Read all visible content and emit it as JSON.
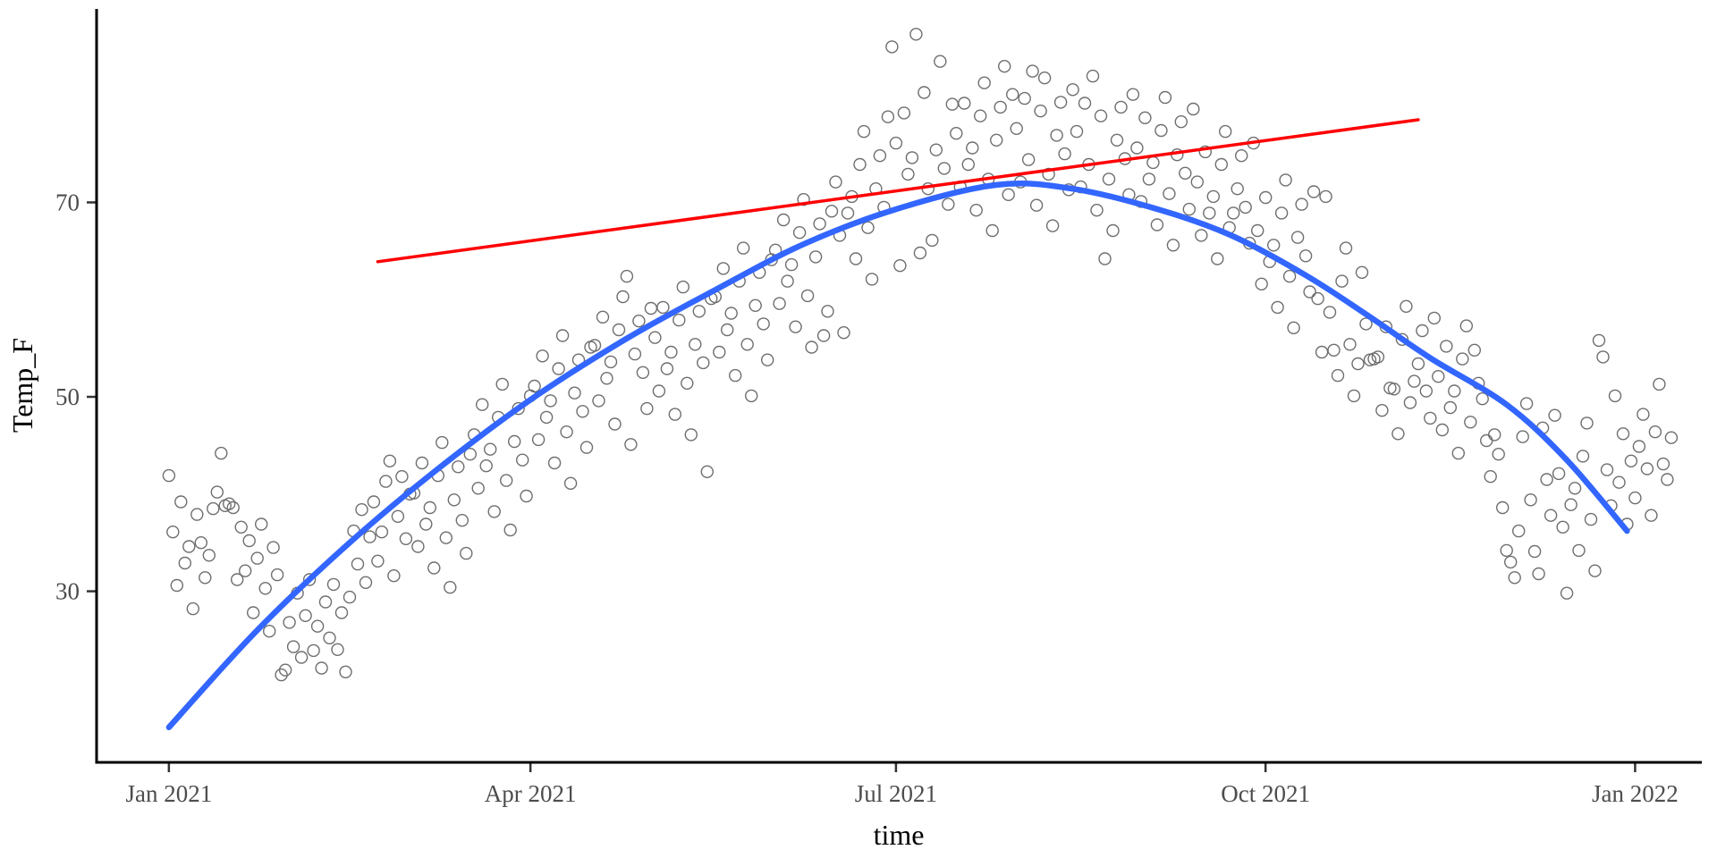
{
  "chart_data": {
    "type": "scatter",
    "title": "",
    "xlabel": "time",
    "ylabel": "Temp_F",
    "grid": false,
    "legend": "none",
    "plot_background": "#ffffff",
    "colors": {
      "points": "#6e6e6e",
      "smooth_line": "#3366FF",
      "trend_line": "#FF0000",
      "axis_line": "#000000",
      "tick_text": "#4d4d4d",
      "title_text": "#000000"
    },
    "x_axis": {
      "label": "time",
      "unit": "days since 2021-01-01",
      "range": [
        -18,
        381.6
      ],
      "ticks": [
        {
          "day": 0,
          "label": "Jan 2021"
        },
        {
          "day": 90,
          "label": "Apr 2021"
        },
        {
          "day": 181,
          "label": "Jul 2021"
        },
        {
          "day": 273,
          "label": "Oct 2021"
        },
        {
          "day": 365,
          "label": "Jan 2022"
        }
      ]
    },
    "y_axis": {
      "label": "Temp_F",
      "range": [
        12.4,
        89.9
      ],
      "ticks": [
        30,
        50,
        70
      ]
    },
    "smooth_line": {
      "name": "quadratic-smooth-fit",
      "color": "#3366FF",
      "points": [
        [
          0,
          16
        ],
        [
          22,
          26
        ],
        [
          45,
          35
        ],
        [
          67,
          42.6
        ],
        [
          90,
          49.7
        ],
        [
          114,
          56
        ],
        [
          136,
          61
        ],
        [
          158,
          65.7
        ],
        [
          181,
          69.3
        ],
        [
          206,
          71.8
        ],
        [
          225,
          71.4
        ],
        [
          247,
          69.2
        ],
        [
          265,
          66.5
        ],
        [
          283,
          62.5
        ],
        [
          298,
          58.5
        ],
        [
          314,
          54
        ],
        [
          333,
          49.2
        ],
        [
          348,
          43.5
        ],
        [
          363,
          36.2
        ]
      ]
    },
    "trend_line": {
      "name": "linear-trend-fit",
      "color": "#FF0000",
      "start": [
        52,
        63.9
      ],
      "end": [
        311,
        78.5
      ]
    },
    "points": [
      [
        0,
        41.9
      ],
      [
        1,
        36.1
      ],
      [
        2,
        30.6
      ],
      [
        3,
        39.2
      ],
      [
        4,
        32.9
      ],
      [
        5,
        34.6
      ],
      [
        6,
        28.2
      ],
      [
        7,
        37.9
      ],
      [
        8,
        35.0
      ],
      [
        9,
        31.4
      ],
      [
        10,
        33.7
      ],
      [
        11,
        38.5
      ],
      [
        12,
        40.2
      ],
      [
        13,
        44.2
      ],
      [
        14,
        38.8
      ],
      [
        15,
        39.0
      ],
      [
        16,
        38.6
      ],
      [
        17,
        31.2
      ],
      [
        18,
        36.6
      ],
      [
        19,
        32.1
      ],
      [
        20,
        35.2
      ],
      [
        21,
        27.8
      ],
      [
        22,
        33.4
      ],
      [
        23,
        36.9
      ],
      [
        24,
        30.3
      ],
      [
        25,
        25.9
      ],
      [
        26,
        34.5
      ],
      [
        27,
        31.7
      ],
      [
        28,
        21.4
      ],
      [
        29,
        21.9
      ],
      [
        30,
        26.8
      ],
      [
        31,
        24.3
      ],
      [
        32,
        29.8
      ],
      [
        33,
        23.2
      ],
      [
        34,
        27.5
      ],
      [
        35,
        31.2
      ],
      [
        36,
        23.9
      ],
      [
        37,
        26.4
      ],
      [
        38,
        22.1
      ],
      [
        39,
        28.9
      ],
      [
        40,
        25.2
      ],
      [
        41,
        30.7
      ],
      [
        42,
        24.0
      ],
      [
        43,
        27.8
      ],
      [
        44,
        21.7
      ],
      [
        45,
        29.4
      ],
      [
        46,
        36.2
      ],
      [
        47,
        32.8
      ],
      [
        48,
        38.4
      ],
      [
        49,
        30.9
      ],
      [
        50,
        35.6
      ],
      [
        51,
        39.2
      ],
      [
        52,
        33.1
      ],
      [
        53,
        36.1
      ],
      [
        54,
        41.3
      ],
      [
        55,
        43.4
      ],
      [
        56,
        31.6
      ],
      [
        57,
        37.7
      ],
      [
        58,
        41.8
      ],
      [
        59,
        35.4
      ],
      [
        60,
        40.0
      ],
      [
        61,
        40.1
      ],
      [
        62,
        34.6
      ],
      [
        63,
        43.2
      ],
      [
        64,
        36.9
      ],
      [
        65,
        38.6
      ],
      [
        66,
        32.4
      ],
      [
        67,
        41.9
      ],
      [
        68,
        45.3
      ],
      [
        69,
        35.5
      ],
      [
        70,
        30.4
      ],
      [
        71,
        39.4
      ],
      [
        72,
        42.8
      ],
      [
        73,
        37.3
      ],
      [
        74,
        33.9
      ],
      [
        75,
        44.1
      ],
      [
        76,
        46.1
      ],
      [
        77,
        40.6
      ],
      [
        78,
        49.2
      ],
      [
        79,
        42.9
      ],
      [
        80,
        44.6
      ],
      [
        81,
        38.2
      ],
      [
        82,
        47.9
      ],
      [
        83,
        51.3
      ],
      [
        84,
        41.4
      ],
      [
        85,
        36.3
      ],
      [
        86,
        45.4
      ],
      [
        87,
        48.8
      ],
      [
        88,
        43.5
      ],
      [
        89,
        39.8
      ],
      [
        90,
        50.1
      ],
      [
        91,
        51.1
      ],
      [
        92,
        45.6
      ],
      [
        93,
        54.2
      ],
      [
        94,
        47.9
      ],
      [
        95,
        49.6
      ],
      [
        96,
        43.2
      ],
      [
        97,
        52.9
      ],
      [
        98,
        56.3
      ],
      [
        99,
        46.4
      ],
      [
        100,
        41.1
      ],
      [
        101,
        50.4
      ],
      [
        102,
        53.8
      ],
      [
        103,
        48.5
      ],
      [
        104,
        44.8
      ],
      [
        105,
        55.1
      ],
      [
        106,
        55.3
      ],
      [
        107,
        49.6
      ],
      [
        108,
        58.2
      ],
      [
        109,
        51.9
      ],
      [
        110,
        53.6
      ],
      [
        111,
        47.2
      ],
      [
        112,
        56.9
      ],
      [
        113,
        60.3
      ],
      [
        114,
        62.4
      ],
      [
        115,
        45.1
      ],
      [
        116,
        54.4
      ],
      [
        117,
        57.8
      ],
      [
        118,
        52.5
      ],
      [
        119,
        48.8
      ],
      [
        120,
        59.1
      ],
      [
        121,
        56.1
      ],
      [
        122,
        50.6
      ],
      [
        123,
        59.2
      ],
      [
        124,
        52.9
      ],
      [
        125,
        54.6
      ],
      [
        126,
        48.2
      ],
      [
        127,
        57.9
      ],
      [
        128,
        61.3
      ],
      [
        129,
        51.4
      ],
      [
        130,
        46.1
      ],
      [
        131,
        55.4
      ],
      [
        132,
        58.8
      ],
      [
        133,
        53.5
      ],
      [
        134,
        42.3
      ],
      [
        135,
        60.1
      ],
      [
        136,
        60.3
      ],
      [
        137,
        54.6
      ],
      [
        138,
        63.2
      ],
      [
        139,
        56.9
      ],
      [
        140,
        58.6
      ],
      [
        141,
        52.2
      ],
      [
        142,
        61.9
      ],
      [
        143,
        65.3
      ],
      [
        144,
        55.4
      ],
      [
        145,
        50.1
      ],
      [
        146,
        59.4
      ],
      [
        147,
        62.8
      ],
      [
        148,
        57.5
      ],
      [
        149,
        53.8
      ],
      [
        150,
        64.1
      ],
      [
        151,
        65.1
      ],
      [
        152,
        59.6
      ],
      [
        153,
        68.2
      ],
      [
        154,
        61.9
      ],
      [
        155,
        63.6
      ],
      [
        156,
        57.2
      ],
      [
        157,
        66.9
      ],
      [
        158,
        70.3
      ],
      [
        159,
        60.4
      ],
      [
        160,
        55.1
      ],
      [
        161,
        64.4
      ],
      [
        162,
        67.8
      ],
      [
        163,
        56.3
      ],
      [
        164,
        58.8
      ],
      [
        165,
        69.1
      ],
      [
        166,
        72.1
      ],
      [
        167,
        66.6
      ],
      [
        168,
        56.6
      ],
      [
        169,
        68.9
      ],
      [
        170,
        70.6
      ],
      [
        171,
        64.2
      ],
      [
        172,
        73.9
      ],
      [
        173,
        77.3
      ],
      [
        174,
        67.4
      ],
      [
        175,
        62.1
      ],
      [
        176,
        71.4
      ],
      [
        177,
        74.8
      ],
      [
        178,
        69.5
      ],
      [
        179,
        78.8
      ],
      [
        180,
        86.0
      ],
      [
        181,
        76.1
      ],
      [
        182,
        63.5
      ],
      [
        183,
        79.2
      ],
      [
        184,
        72.9
      ],
      [
        185,
        74.6
      ],
      [
        186,
        87.3
      ],
      [
        187,
        64.8
      ],
      [
        188,
        81.3
      ],
      [
        189,
        71.4
      ],
      [
        190,
        66.1
      ],
      [
        191,
        75.4
      ],
      [
        192,
        84.5
      ],
      [
        193,
        73.5
      ],
      [
        194,
        69.8
      ],
      [
        195,
        80.1
      ],
      [
        196,
        77.1
      ],
      [
        197,
        71.6
      ],
      [
        198,
        80.2
      ],
      [
        199,
        73.9
      ],
      [
        200,
        75.6
      ],
      [
        201,
        69.2
      ],
      [
        202,
        78.9
      ],
      [
        203,
        82.3
      ],
      [
        204,
        72.4
      ],
      [
        205,
        67.1
      ],
      [
        206,
        76.4
      ],
      [
        207,
        79.8
      ],
      [
        208,
        84.0
      ],
      [
        209,
        70.8
      ],
      [
        210,
        81.1
      ],
      [
        211,
        77.6
      ],
      [
        212,
        72.1
      ],
      [
        213,
        80.7
      ],
      [
        214,
        74.4
      ],
      [
        215,
        83.5
      ],
      [
        216,
        69.7
      ],
      [
        217,
        79.4
      ],
      [
        218,
        82.8
      ],
      [
        219,
        72.9
      ],
      [
        220,
        67.6
      ],
      [
        221,
        76.9
      ],
      [
        222,
        80.3
      ],
      [
        223,
        75.0
      ],
      [
        224,
        71.3
      ],
      [
        225,
        81.6
      ],
      [
        226,
        77.3
      ],
      [
        227,
        71.6
      ],
      [
        228,
        80.2
      ],
      [
        229,
        73.9
      ],
      [
        230,
        83.0
      ],
      [
        231,
        69.2
      ],
      [
        232,
        78.9
      ],
      [
        233,
        64.2
      ],
      [
        234,
        72.4
      ],
      [
        235,
        67.1
      ],
      [
        236,
        76.4
      ],
      [
        237,
        79.8
      ],
      [
        238,
        74.5
      ],
      [
        239,
        70.8
      ],
      [
        240,
        81.1
      ],
      [
        241,
        75.6
      ],
      [
        242,
        70.1
      ],
      [
        243,
        78.7
      ],
      [
        244,
        72.4
      ],
      [
        245,
        74.1
      ],
      [
        246,
        67.7
      ],
      [
        247,
        77.4
      ],
      [
        248,
        80.8
      ],
      [
        249,
        70.9
      ],
      [
        250,
        65.6
      ],
      [
        251,
        74.9
      ],
      [
        252,
        78.3
      ],
      [
        253,
        73.0
      ],
      [
        254,
        69.3
      ],
      [
        255,
        79.6
      ],
      [
        256,
        72.1
      ],
      [
        257,
        66.6
      ],
      [
        258,
        75.2
      ],
      [
        259,
        68.9
      ],
      [
        260,
        70.6
      ],
      [
        261,
        64.2
      ],
      [
        262,
        73.9
      ],
      [
        263,
        77.3
      ],
      [
        264,
        67.4
      ],
      [
        265,
        68.9
      ],
      [
        266,
        71.4
      ],
      [
        267,
        74.8
      ],
      [
        268,
        69.5
      ],
      [
        269,
        65.8
      ],
      [
        270,
        76.1
      ],
      [
        271,
        67.1
      ],
      [
        272,
        61.6
      ],
      [
        273,
        70.5
      ],
      [
        274,
        63.9
      ],
      [
        275,
        65.6
      ],
      [
        276,
        59.2
      ],
      [
        277,
        68.9
      ],
      [
        278,
        72.3
      ],
      [
        279,
        62.4
      ],
      [
        280,
        57.1
      ],
      [
        281,
        66.4
      ],
      [
        282,
        69.8
      ],
      [
        283,
        64.5
      ],
      [
        284,
        60.8
      ],
      [
        285,
        71.1
      ],
      [
        286,
        60.1
      ],
      [
        287,
        54.6
      ],
      [
        288,
        70.6
      ],
      [
        289,
        58.7
      ],
      [
        290,
        54.8
      ],
      [
        291,
        52.2
      ],
      [
        292,
        61.9
      ],
      [
        293,
        65.3
      ],
      [
        294,
        55.4
      ],
      [
        295,
        50.1
      ],
      [
        296,
        53.4
      ],
      [
        297,
        62.8
      ],
      [
        298,
        57.5
      ],
      [
        299,
        53.8
      ],
      [
        300,
        53.9
      ],
      [
        301,
        54.1
      ],
      [
        302,
        48.6
      ],
      [
        303,
        57.2
      ],
      [
        304,
        50.9
      ],
      [
        305,
        50.8
      ],
      [
        306,
        46.2
      ],
      [
        307,
        55.9
      ],
      [
        308,
        59.3
      ],
      [
        309,
        49.4
      ],
      [
        310,
        51.6
      ],
      [
        311,
        53.4
      ],
      [
        312,
        56.8
      ],
      [
        313,
        50.6
      ],
      [
        314,
        47.8
      ],
      [
        315,
        58.1
      ],
      [
        316,
        52.1
      ],
      [
        317,
        46.6
      ],
      [
        318,
        55.2
      ],
      [
        319,
        48.9
      ],
      [
        320,
        50.6
      ],
      [
        321,
        44.2
      ],
      [
        322,
        53.9
      ],
      [
        323,
        57.3
      ],
      [
        324,
        47.4
      ],
      [
        325,
        54.8
      ],
      [
        326,
        51.4
      ],
      [
        327,
        49.8
      ],
      [
        328,
        45.5
      ],
      [
        329,
        41.8
      ],
      [
        330,
        46.1
      ],
      [
        331,
        44.1
      ],
      [
        332,
        38.6
      ],
      [
        333,
        34.2
      ],
      [
        334,
        33.0
      ],
      [
        335,
        31.4
      ],
      [
        336,
        36.2
      ],
      [
        337,
        45.9
      ],
      [
        338,
        49.3
      ],
      [
        339,
        39.4
      ],
      [
        340,
        34.1
      ],
      [
        341,
        31.8
      ],
      [
        342,
        46.8
      ],
      [
        343,
        41.5
      ],
      [
        344,
        37.8
      ],
      [
        345,
        48.1
      ],
      [
        346,
        42.1
      ],
      [
        347,
        36.6
      ],
      [
        348,
        29.8
      ],
      [
        349,
        38.9
      ],
      [
        350,
        40.6
      ],
      [
        351,
        34.2
      ],
      [
        352,
        43.9
      ],
      [
        353,
        47.3
      ],
      [
        354,
        37.4
      ],
      [
        355,
        32.1
      ],
      [
        356,
        55.8
      ],
      [
        357,
        54.1
      ],
      [
        358,
        42.5
      ],
      [
        359,
        38.8
      ],
      [
        360,
        50.1
      ],
      [
        361,
        41.2
      ],
      [
        362,
        46.2
      ],
      [
        363,
        36.9
      ],
      [
        364,
        43.4
      ],
      [
        365,
        39.6
      ],
      [
        366,
        44.9
      ],
      [
        367,
        48.2
      ],
      [
        368,
        42.6
      ],
      [
        369,
        37.8
      ],
      [
        370,
        46.4
      ],
      [
        371,
        51.3
      ],
      [
        372,
        43.1
      ],
      [
        373,
        41.5
      ],
      [
        374,
        45.8
      ]
    ]
  }
}
